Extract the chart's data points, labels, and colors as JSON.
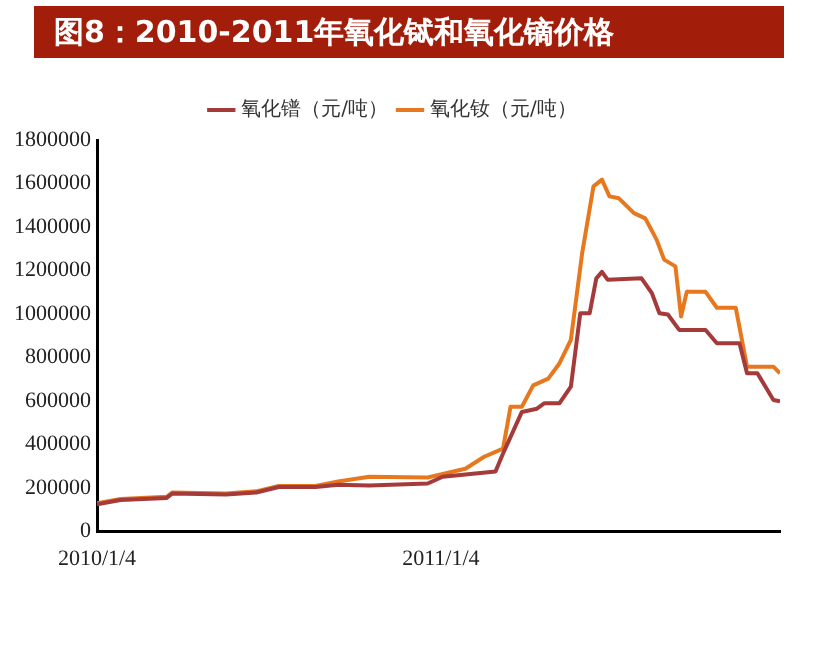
{
  "chart_data": {
    "type": "line",
    "title": "图8：2010-2011年氧化铽和氧化镝价格",
    "xlim": [
      "2010-01-04",
      "2011-12-30"
    ],
    "xticks": [
      {
        "value": "2010-01-04",
        "label": "2010/1/4"
      },
      {
        "value": "2011-01-04",
        "label": "2011/1/4"
      }
    ],
    "ylim": [
      0,
      1800000
    ],
    "yticks": [
      0,
      200000,
      400000,
      600000,
      800000,
      1000000,
      1200000,
      1400000,
      1600000,
      1800000
    ],
    "grid": false,
    "legend": "top",
    "marker": "none",
    "line_style": "solid",
    "series": [
      {
        "name": "氧化镨（元/吨）",
        "color": "#a53a3b",
        "x": [
          "2010-01-04",
          "2010-01-29",
          "2010-03-19",
          "2010-03-25",
          "2010-05-21",
          "2010-06-22",
          "2010-07-16",
          "2010-08-24",
          "2010-09-17",
          "2010-10-20",
          "2010-12-21",
          "2011-01-06",
          "2011-03-03",
          "2011-03-11",
          "2011-03-31",
          "2011-04-16",
          "2011-04-24",
          "2011-05-10",
          "2011-05-22",
          "2011-06-01",
          "2011-06-11",
          "2011-06-18",
          "2011-06-24",
          "2011-06-30",
          "2011-08-05",
          "2011-08-16",
          "2011-08-24",
          "2011-09-02",
          "2011-09-14",
          "2011-10-12",
          "2011-10-24",
          "2011-11-17",
          "2011-11-25",
          "2011-12-06",
          "2011-12-23",
          "2011-12-30"
        ],
        "values": [
          125000,
          145000,
          155000,
          175000,
          170000,
          180000,
          205000,
          205000,
          215000,
          212000,
          221000,
          252000,
          276000,
          359000,
          550000,
          565000,
          590000,
          590000,
          666000,
          1004000,
          1004000,
          1164000,
          1194000,
          1158000,
          1164000,
          1096000,
          1004000,
          998000,
          927000,
          927000,
          866000,
          866000,
          728000,
          728000,
          605000,
          599000
        ]
      },
      {
        "name": "氧化钕（元/吨）",
        "color": "#e8781e",
        "x": [
          "2010-01-04",
          "2010-01-29",
          "2010-03-19",
          "2010-03-25",
          "2010-05-21",
          "2010-06-22",
          "2010-07-16",
          "2010-08-24",
          "2010-09-17",
          "2010-10-20",
          "2010-12-21",
          "2011-01-30",
          "2011-02-19",
          "2011-03-11",
          "2011-03-19",
          "2011-03-31",
          "2011-04-12",
          "2011-04-28",
          "2011-05-10",
          "2011-05-22",
          "2011-06-03",
          "2011-06-15",
          "2011-06-24",
          "2011-07-02",
          "2011-07-12",
          "2011-07-28",
          "2011-08-09",
          "2011-08-21",
          "2011-08-29",
          "2011-09-10",
          "2011-09-16",
          "2011-09-22",
          "2011-10-12",
          "2011-10-24",
          "2011-11-13",
          "2011-11-25",
          "2011-12-23",
          "2011-12-30"
        ],
        "values": [
          130000,
          150000,
          160000,
          180000,
          175000,
          185000,
          210000,
          210000,
          230000,
          252000,
          249000,
          289000,
          344000,
          381000,
          574000,
          574000,
          672000,
          703000,
          774000,
          881000,
          1280000,
          1587000,
          1618000,
          1541000,
          1532000,
          1464000,
          1440000,
          1342000,
          1250000,
          1219000,
          989000,
          1102000,
          1102000,
          1029000,
          1029000,
          758000,
          758000,
          728000
        ]
      }
    ]
  }
}
